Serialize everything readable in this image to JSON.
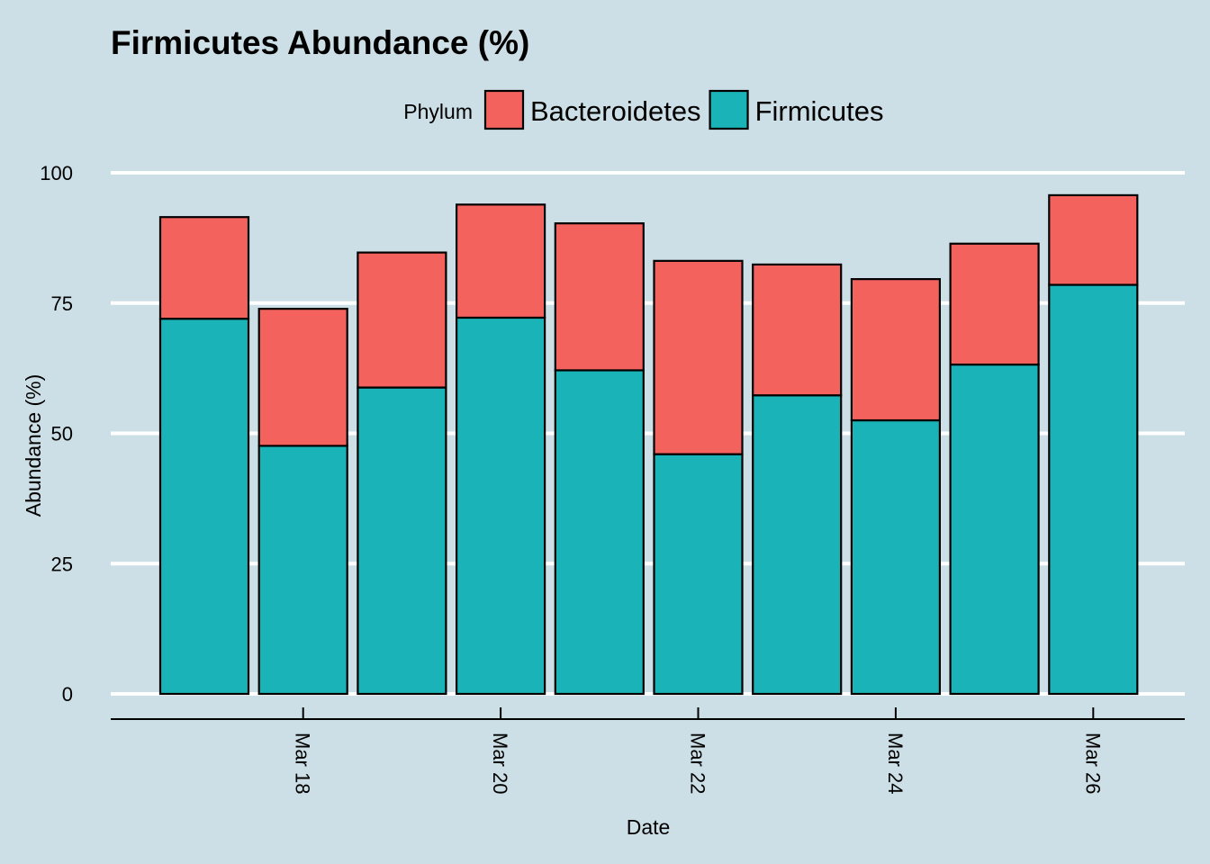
{
  "chart_data": {
    "type": "bar",
    "stacked": true,
    "title": "Firmicutes Abundance (%)",
    "xlabel": "Date",
    "ylabel": "Abundance (%)",
    "ylim": [
      0,
      100
    ],
    "yticks": [
      0,
      25,
      50,
      75,
      100
    ],
    "xticks": [
      "Mar 18",
      "Mar 20",
      "Mar 22",
      "Mar 24",
      "Mar 26"
    ],
    "xtick_positions": [
      "2024-03-18",
      "2024-03-20",
      "2024-03-22",
      "2024-03-24",
      "2024-03-26"
    ],
    "x": [
      "2024-03-17",
      "2024-03-18",
      "2024-03-19",
      "2024-03-20",
      "2024-03-21",
      "2024-03-22",
      "2024-03-23",
      "2024-03-24",
      "2024-03-25",
      "2024-03-26"
    ],
    "legend": {
      "title": "Phylum",
      "position": "top"
    },
    "grid": "horizontal",
    "series": [
      {
        "name": "Firmicutes",
        "color": "#1ab3b7",
        "values": [
          72.0,
          47.6,
          58.8,
          72.2,
          62.1,
          46.0,
          57.3,
          52.5,
          63.2,
          78.5
        ]
      },
      {
        "name": "Bacteroidetes",
        "color": "#f4625e",
        "values": [
          19.5,
          26.3,
          25.9,
          21.7,
          28.2,
          37.1,
          25.1,
          27.1,
          23.2,
          17.2
        ]
      }
    ],
    "legend_order": [
      "Bacteroidetes",
      "Firmicutes"
    ],
    "colors": {
      "background": "#cddfe6",
      "grid": "#ffffff",
      "outline": "#000000"
    }
  }
}
